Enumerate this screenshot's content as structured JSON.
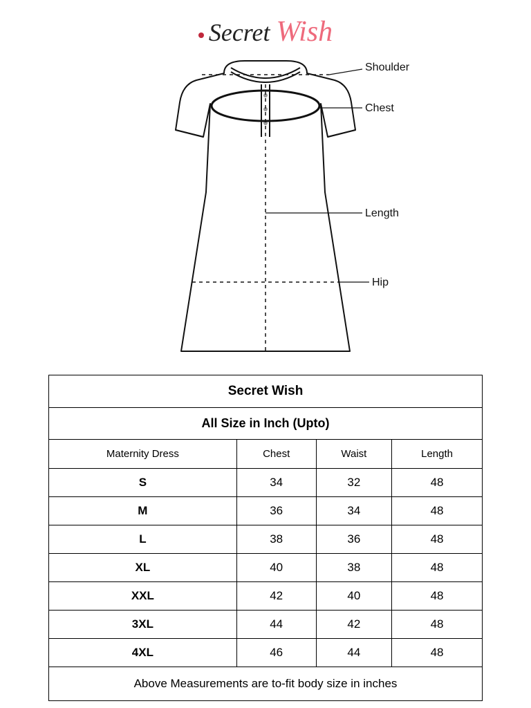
{
  "logo": {
    "part1": "Secret",
    "part2": "Wish"
  },
  "diagram": {
    "labels": {
      "shoulder": "Shoulder",
      "chest": "Chest",
      "length": "Length",
      "hip": "Hip"
    },
    "stroke": "#111111",
    "dash": "5,5",
    "label_fontsize": 16
  },
  "table": {
    "brand": "Secret Wish",
    "subheader": "All Size in Inch (Upto)",
    "columns": [
      "Maternity Dress",
      "Chest",
      "Waist",
      "Length"
    ],
    "rows": [
      [
        "S",
        "34",
        "32",
        "48"
      ],
      [
        "M",
        "36",
        "34",
        "48"
      ],
      [
        "L",
        "38",
        "36",
        "48"
      ],
      [
        "XL",
        "40",
        "38",
        "48"
      ],
      [
        "XXL",
        "42",
        "40",
        "48"
      ],
      [
        "3XL",
        "44",
        "42",
        "48"
      ],
      [
        "4XL",
        "46",
        "44",
        "48"
      ]
    ],
    "footer": "Above Measurements are to-fit body size in inches"
  }
}
